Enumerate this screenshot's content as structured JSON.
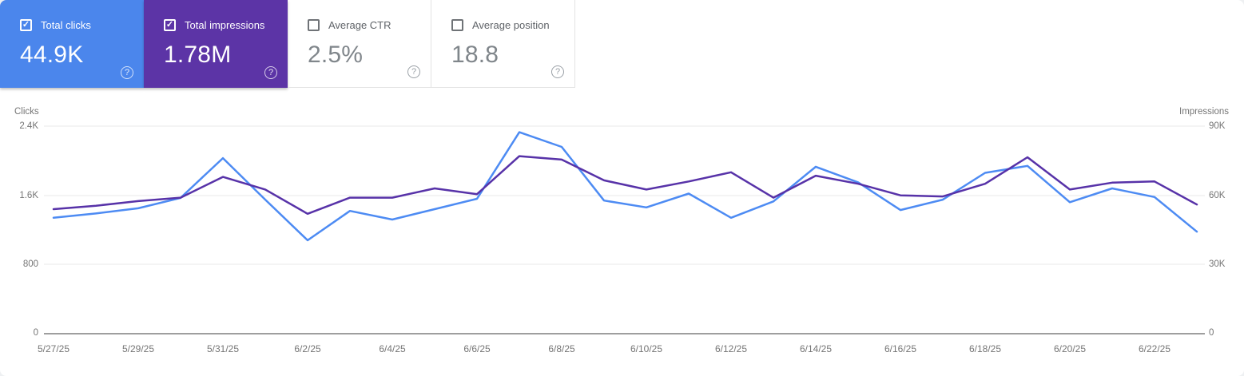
{
  "icons": {
    "check": "✓",
    "help": "?"
  },
  "cards": [
    {
      "label": "Total clicks",
      "value": "44.9K",
      "checked": true,
      "color": "#4b86ec",
      "text_color": "#ffffff"
    },
    {
      "label": "Total impressions",
      "value": "1.78M",
      "checked": true,
      "color": "#5c34a6",
      "text_color": "#ffffff"
    },
    {
      "label": "Average CTR",
      "value": "2.5%",
      "checked": false
    },
    {
      "label": "Average position",
      "value": "18.8",
      "checked": false
    }
  ],
  "chart_data": {
    "type": "line",
    "x": [
      "5/27/25",
      "5/28/25",
      "5/29/25",
      "5/30/25",
      "5/31/25",
      "6/1/25",
      "6/2/25",
      "6/3/25",
      "6/4/25",
      "6/5/25",
      "6/6/25",
      "6/7/25",
      "6/8/25",
      "6/9/25",
      "6/10/25",
      "6/11/25",
      "6/12/25",
      "6/13/25",
      "6/14/25",
      "6/15/25",
      "6/16/25",
      "6/17/25",
      "6/18/25",
      "6/19/25",
      "6/20/25",
      "6/21/25",
      "6/22/25",
      "6/23/25"
    ],
    "x_tick_labels": [
      "5/27/25",
      "5/29/25",
      "5/31/25",
      "6/2/25",
      "6/4/25",
      "6/6/25",
      "6/8/25",
      "6/10/25",
      "6/12/25",
      "6/14/25",
      "6/16/25",
      "6/18/25",
      "6/20/25",
      "6/22/25"
    ],
    "left_axis": {
      "title": "Clicks",
      "range": [
        0,
        2400
      ],
      "ticks": [
        "2.4K",
        "1.6K",
        "800",
        "0"
      ]
    },
    "right_axis": {
      "title": "Impressions",
      "range": [
        0,
        90000
      ],
      "ticks": [
        "90K",
        "60K",
        "30K",
        "0"
      ]
    },
    "grid": true,
    "legend_position": "none",
    "series": [
      {
        "name": "Total clicks",
        "axis": "left",
        "color": "#4d8bf3",
        "values": [
          1340,
          1390,
          1450,
          1570,
          2030,
          1550,
          1080,
          1420,
          1320,
          1440,
          1560,
          2330,
          2160,
          1540,
          1460,
          1620,
          1340,
          1530,
          1930,
          1750,
          1430,
          1550,
          1860,
          1940,
          1520,
          1680,
          1580,
          1180
        ]
      },
      {
        "name": "Total impressions",
        "axis": "right",
        "color": "#5732a8",
        "values": [
          54000,
          55500,
          57500,
          59000,
          68000,
          62500,
          52000,
          59000,
          59000,
          63000,
          60500,
          77000,
          75500,
          66500,
          62500,
          66000,
          70000,
          59000,
          68500,
          65000,
          60000,
          59500,
          65000,
          76500,
          62500,
          65500,
          66000,
          56000
        ]
      }
    ]
  }
}
